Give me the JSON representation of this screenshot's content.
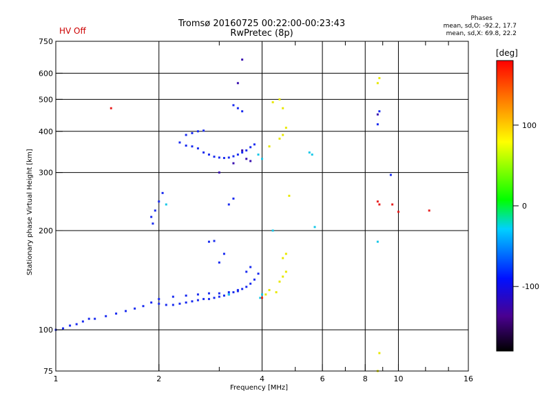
{
  "header": {
    "title_line1": "Tromsø 20160725 00:22:00-00:23:43",
    "title_line2": "RwPretec (8p)",
    "status_label": "HV Off",
    "stats_title": "Phases",
    "stats_o": "mean, sd,O: -92.2, 17.7",
    "stats_x": "mean, sd,X:  69.8, 22.2"
  },
  "colorbar": {
    "unit": "[deg]",
    "ticks": [
      "100",
      "0",
      "-100"
    ],
    "min": -180,
    "max": 180
  },
  "colors": {
    "blue": "#1a2cf0",
    "cyan": "#18c8e8",
    "yellow": "#e8e800",
    "red": "#e82020",
    "indigo": "#3a10b0"
  },
  "chart_data": {
    "type": "scatter",
    "title": "Tromsø 20160725 00:22:00-00:23:43 RwPretec (8p)",
    "xlabel": "Frequency [MHz]",
    "ylabel": "Stationary phase Virtual Height [km]",
    "xscale": "log",
    "yscale": "log",
    "xlim": [
      1,
      16
    ],
    "ylim": [
      75,
      750
    ],
    "x_ticks": [
      "1",
      "2",
      "4",
      "6",
      "8",
      "10",
      "16"
    ],
    "y_ticks": [
      "75",
      "100",
      "200",
      "300",
      "400",
      "500",
      "600",
      "750"
    ],
    "grid": true,
    "series": [
      {
        "color": "#1a2cf0",
        "points": [
          [
            1.0,
            100
          ],
          [
            1.05,
            101
          ],
          [
            1.1,
            103
          ],
          [
            1.15,
            104
          ],
          [
            1.2,
            106
          ],
          [
            1.25,
            108
          ],
          [
            1.3,
            108
          ],
          [
            1.4,
            110
          ],
          [
            1.5,
            112
          ],
          [
            1.6,
            114
          ],
          [
            1.7,
            116
          ],
          [
            1.8,
            118
          ],
          [
            1.9,
            121
          ],
          [
            2.0,
            120
          ],
          [
            2.1,
            119
          ],
          [
            2.2,
            119
          ],
          [
            2.3,
            120
          ],
          [
            2.4,
            121
          ],
          [
            2.5,
            122
          ],
          [
            2.6,
            123
          ],
          [
            2.7,
            124
          ],
          [
            2.8,
            124
          ],
          [
            2.9,
            125
          ],
          [
            3.0,
            126
          ],
          [
            3.1,
            127
          ],
          [
            3.2,
            128
          ],
          [
            3.3,
            130
          ],
          [
            3.4,
            131
          ],
          [
            3.5,
            133
          ],
          [
            3.6,
            135
          ],
          [
            3.7,
            138
          ],
          [
            3.8,
            142
          ],
          [
            3.9,
            148
          ],
          [
            2.0,
            124
          ],
          [
            2.2,
            126
          ],
          [
            2.4,
            127
          ],
          [
            2.6,
            128
          ],
          [
            2.8,
            129
          ],
          [
            3.0,
            129
          ],
          [
            3.2,
            130
          ],
          [
            3.4,
            132
          ],
          [
            1.9,
            220
          ],
          [
            1.95,
            230
          ],
          [
            2.0,
            245
          ],
          [
            2.05,
            260
          ],
          [
            1.92,
            210
          ],
          [
            2.6,
            355
          ],
          [
            2.7,
            345
          ],
          [
            2.8,
            340
          ],
          [
            2.9,
            335
          ],
          [
            3.0,
            333
          ],
          [
            3.1,
            332
          ],
          [
            3.2,
            333
          ],
          [
            3.3,
            336
          ],
          [
            3.4,
            340
          ],
          [
            3.5,
            345
          ],
          [
            3.6,
            350
          ],
          [
            3.7,
            358
          ],
          [
            3.8,
            365
          ],
          [
            2.4,
            362
          ],
          [
            2.5,
            360
          ],
          [
            2.3,
            370
          ],
          [
            2.4,
            390
          ],
          [
            2.5,
            395
          ],
          [
            2.6,
            400
          ],
          [
            2.7,
            402
          ],
          [
            3.3,
            480
          ],
          [
            3.4,
            470
          ],
          [
            3.5,
            460
          ],
          [
            2.8,
            185
          ],
          [
            2.9,
            186
          ],
          [
            3.6,
            150
          ],
          [
            3.7,
            155
          ],
          [
            3.0,
            160
          ],
          [
            3.1,
            170
          ],
          [
            3.2,
            240
          ],
          [
            3.3,
            250
          ],
          [
            8.7,
            420
          ],
          [
            8.8,
            460
          ],
          [
            9.5,
            295
          ]
        ]
      },
      {
        "color": "#18c8e8",
        "points": [
          [
            3.9,
            340
          ],
          [
            4.0,
            330
          ],
          [
            3.95,
            125
          ],
          [
            4.0,
            128
          ],
          [
            5.5,
            345
          ],
          [
            5.6,
            340
          ],
          [
            8.7,
            185
          ],
          [
            5.7,
            205
          ],
          [
            4.3,
            200
          ],
          [
            2.1,
            240
          ],
          [
            3.2,
            128
          ]
        ]
      },
      {
        "color": "#e8e800",
        "points": [
          [
            4.0,
            125
          ],
          [
            4.1,
            128
          ],
          [
            4.2,
            132
          ],
          [
            4.4,
            130
          ],
          [
            4.5,
            140
          ],
          [
            4.6,
            145
          ],
          [
            4.7,
            150
          ],
          [
            4.6,
            165
          ],
          [
            4.7,
            170
          ],
          [
            4.5,
            380
          ],
          [
            4.6,
            390
          ],
          [
            4.7,
            410
          ],
          [
            4.5,
            500
          ],
          [
            4.6,
            470
          ],
          [
            4.3,
            490
          ],
          [
            4.2,
            360
          ],
          [
            4.8,
            255
          ],
          [
            8.8,
            580
          ],
          [
            8.7,
            560
          ],
          [
            8.8,
            85
          ],
          [
            8.7,
            75
          ]
        ]
      },
      {
        "color": "#e82020",
        "points": [
          [
            1.45,
            470
          ],
          [
            4.0,
            125
          ],
          [
            8.7,
            245
          ],
          [
            8.8,
            240
          ],
          [
            9.6,
            240
          ],
          [
            12.3,
            230
          ],
          [
            10.0,
            228
          ]
        ]
      },
      {
        "color": "#3a10b0",
        "points": [
          [
            3.5,
            660
          ],
          [
            3.4,
            560
          ],
          [
            3.6,
            330
          ],
          [
            3.7,
            325
          ],
          [
            3.3,
            320
          ],
          [
            3.0,
            300
          ],
          [
            3.5,
            350
          ],
          [
            8.7,
            450
          ]
        ]
      }
    ]
  }
}
